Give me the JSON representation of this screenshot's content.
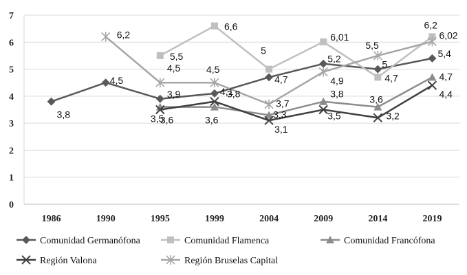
{
  "chart_data": {
    "type": "line",
    "categories": [
      "1986",
      "1990",
      "1995",
      "1999",
      "2004",
      "2009",
      "2014",
      "2019"
    ],
    "ylim": [
      0,
      7
    ],
    "yticks": [
      "0",
      "1",
      "2",
      "3",
      "4",
      "5",
      "6",
      "7"
    ],
    "grid": "horizontal",
    "legend_position": "bottom",
    "title": "",
    "xlabel": "",
    "ylabel": "",
    "series": [
      {
        "name": "Comunidad Germanófona",
        "color": "#595959",
        "marker": "diamond",
        "values": [
          3.8,
          4.5,
          3.9,
          4.1,
          4.7,
          5.2,
          5.0,
          5.4
        ],
        "labels": [
          "3,8",
          "4,5",
          "3,9",
          "4,1",
          "4,7",
          "5,2",
          "5",
          "5,4"
        ]
      },
      {
        "name": "Comunidad Flamenca",
        "color": "#bfbfbf",
        "marker": "square",
        "values": [
          null,
          null,
          5.5,
          6.6,
          5.0,
          6.01,
          4.7,
          6.2
        ],
        "labels": [
          "",
          "",
          "5,5",
          "6,6",
          "5",
          "6,01",
          "4,7",
          "6,2"
        ]
      },
      {
        "name": "Comunidad Francófona",
        "color": "#8c8c8c",
        "marker": "triangle",
        "values": [
          null,
          null,
          3.6,
          3.6,
          3.3,
          3.8,
          3.6,
          4.7
        ],
        "labels": [
          "",
          "",
          "3,6",
          "3,6",
          "3,3",
          "3,8",
          "3,6",
          "4,7"
        ]
      },
      {
        "name": "Región Valona",
        "color": "#404040",
        "marker": "x",
        "values": [
          null,
          null,
          3.5,
          3.8,
          3.1,
          3.5,
          3.2,
          4.4
        ],
        "labels": [
          "",
          "",
          "3,5",
          "3,8",
          "3,1",
          "3,5",
          "3,2",
          "4,4"
        ]
      },
      {
        "name": "Región Bruselas Capital",
        "color": "#a6a6a6",
        "marker": "asterisk",
        "values": [
          null,
          6.2,
          4.5,
          4.5,
          3.7,
          4.9,
          5.5,
          6.02
        ],
        "labels": [
          "",
          "6,2",
          "4,5",
          "4,5",
          "3,7",
          "4,9",
          "5,5",
          "6,02"
        ]
      }
    ]
  }
}
